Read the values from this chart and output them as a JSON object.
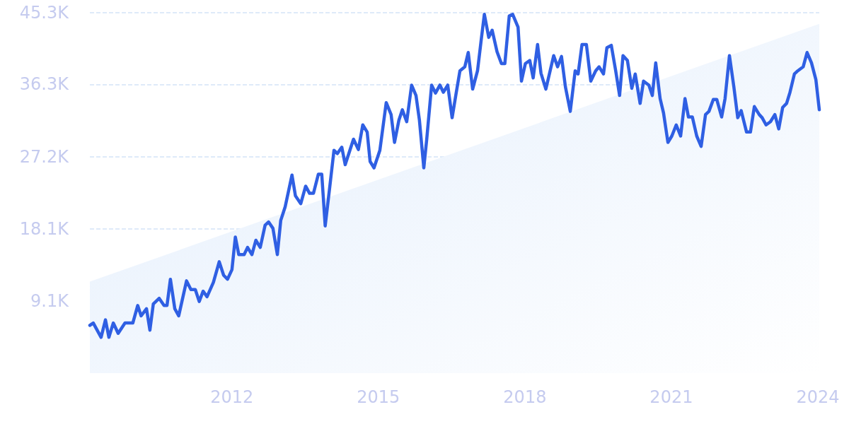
{
  "chart_data": {
    "type": "line",
    "xlim": [
      2009.09,
      2024.03
    ],
    "ylim": [
      0,
      45300
    ],
    "xticks": [
      2012,
      2015,
      2018,
      2021,
      2024
    ],
    "yticks": [
      {
        "value": 9100,
        "label": "9.1K"
      },
      {
        "value": 18100,
        "label": "18.1K"
      },
      {
        "value": 27200,
        "label": "27.2K"
      },
      {
        "value": 36300,
        "label": "36.3K"
      },
      {
        "value": 45300,
        "label": "45.3K"
      }
    ],
    "grid": "y",
    "marker": "none",
    "line_style": "solid",
    "series": [
      {
        "type": "area",
        "color": "#e3eefc",
        "x": [
          2009.09,
          2024.03
        ],
        "values": [
          11500,
          43900
        ]
      },
      {
        "type": "line",
        "color": "#2f5fe3",
        "x": [
          2009.09,
          2009.16,
          2009.32,
          2009.41,
          2009.48,
          2009.57,
          2009.67,
          2009.81,
          2009.97,
          2010.07,
          2010.14,
          2010.25,
          2010.32,
          2010.39,
          2010.51,
          2010.61,
          2010.67,
          2010.74,
          2010.83,
          2010.91,
          2011.07,
          2011.16,
          2011.25,
          2011.33,
          2011.41,
          2011.49,
          2011.62,
          2011.74,
          2011.83,
          2011.91,
          2012.0,
          2012.07,
          2012.14,
          2012.25,
          2012.32,
          2012.41,
          2012.49,
          2012.58,
          2012.68,
          2012.75,
          2012.84,
          2012.93,
          2013.0,
          2013.09,
          2013.23,
          2013.3,
          2013.41,
          2013.51,
          2013.59,
          2013.67,
          2013.77,
          2013.84,
          2013.91,
          2014.0,
          2014.09,
          2014.16,
          2014.25,
          2014.32,
          2014.49,
          2014.59,
          2014.68,
          2014.77,
          2014.83,
          2014.91,
          2015.03,
          2015.16,
          2015.26,
          2015.33,
          2015.42,
          2015.49,
          2015.58,
          2015.68,
          2015.77,
          2015.84,
          2015.93,
          2015.99,
          2016.09,
          2016.17,
          2016.26,
          2016.33,
          2016.42,
          2016.51,
          2016.59,
          2016.67,
          2016.77,
          2016.84,
          2016.93,
          2017.03,
          2017.1,
          2017.17,
          2017.26,
          2017.33,
          2017.43,
          2017.52,
          2017.59,
          2017.68,
          2017.75,
          2017.86,
          2017.93,
          2018.01,
          2018.1,
          2018.17,
          2018.26,
          2018.33,
          2018.43,
          2018.59,
          2018.67,
          2018.75,
          2018.83,
          2018.93,
          2019.03,
          2019.09,
          2019.17,
          2019.26,
          2019.35,
          2019.45,
          2019.52,
          2019.61,
          2019.68,
          2019.77,
          2019.86,
          2019.94,
          2020.01,
          2020.1,
          2020.19,
          2020.26,
          2020.36,
          2020.43,
          2020.54,
          2020.61,
          2020.68,
          2020.77,
          2020.84,
          2020.93,
          2021.01,
          2021.1,
          2021.19,
          2021.28,
          2021.35,
          2021.43,
          2021.52,
          2021.61,
          2021.7,
          2021.77,
          2021.86,
          2021.93,
          2022.03,
          2022.1,
          2022.19,
          2022.28,
          2022.36,
          2022.43,
          2022.54,
          2022.62,
          2022.7,
          2022.8,
          2022.86,
          2022.94,
          2023.03,
          2023.12,
          2023.2,
          2023.28,
          2023.36,
          2023.43,
          2023.52,
          2023.59,
          2023.7,
          2023.78,
          2023.87,
          2023.96,
          2024.03
        ],
        "values": [
          6000,
          6300,
          4500,
          6700,
          4500,
          6300,
          5000,
          6300,
          6300,
          8500,
          7200,
          8100,
          5400,
          8700,
          9400,
          8500,
          8500,
          11800,
          8100,
          7200,
          11600,
          10500,
          10500,
          9000,
          10300,
          9600,
          11400,
          14000,
          12300,
          11800,
          13000,
          17100,
          14900,
          14900,
          15800,
          14900,
          16700,
          15800,
          18600,
          19000,
          18200,
          14900,
          19200,
          20900,
          24900,
          22300,
          21300,
          23500,
          22600,
          22600,
          25000,
          25000,
          18500,
          23200,
          28000,
          27600,
          28400,
          26200,
          29400,
          28100,
          31200,
          30300,
          26600,
          25800,
          28000,
          34000,
          32500,
          29000,
          31800,
          33100,
          31600,
          36200,
          34900,
          31800,
          25800,
          29400,
          36200,
          35200,
          36200,
          35300,
          36200,
          32100,
          35100,
          38000,
          38500,
          40300,
          35700,
          38000,
          41600,
          45100,
          42200,
          43100,
          40400,
          38900,
          38900,
          44900,
          45100,
          43500,
          36700,
          38900,
          39300,
          37100,
          41300,
          37700,
          35700,
          39900,
          38500,
          39800,
          36000,
          32900,
          38000,
          37600,
          41300,
          41300,
          36700,
          38000,
          38500,
          37600,
          40900,
          41200,
          38000,
          34900,
          39900,
          39300,
          35800,
          37600,
          33900,
          36700,
          36200,
          34900,
          39000,
          34500,
          32700,
          29000,
          29800,
          31200,
          29800,
          34500,
          32200,
          32200,
          29800,
          28500,
          32500,
          32900,
          34400,
          34400,
          32200,
          34500,
          39900,
          36000,
          32100,
          33000,
          30300,
          30300,
          33500,
          32500,
          32100,
          31200,
          31600,
          32500,
          30700,
          33400,
          33900,
          35300,
          37600,
          38000,
          38500,
          40300,
          39000,
          36900,
          33100
        ]
      }
    ]
  }
}
